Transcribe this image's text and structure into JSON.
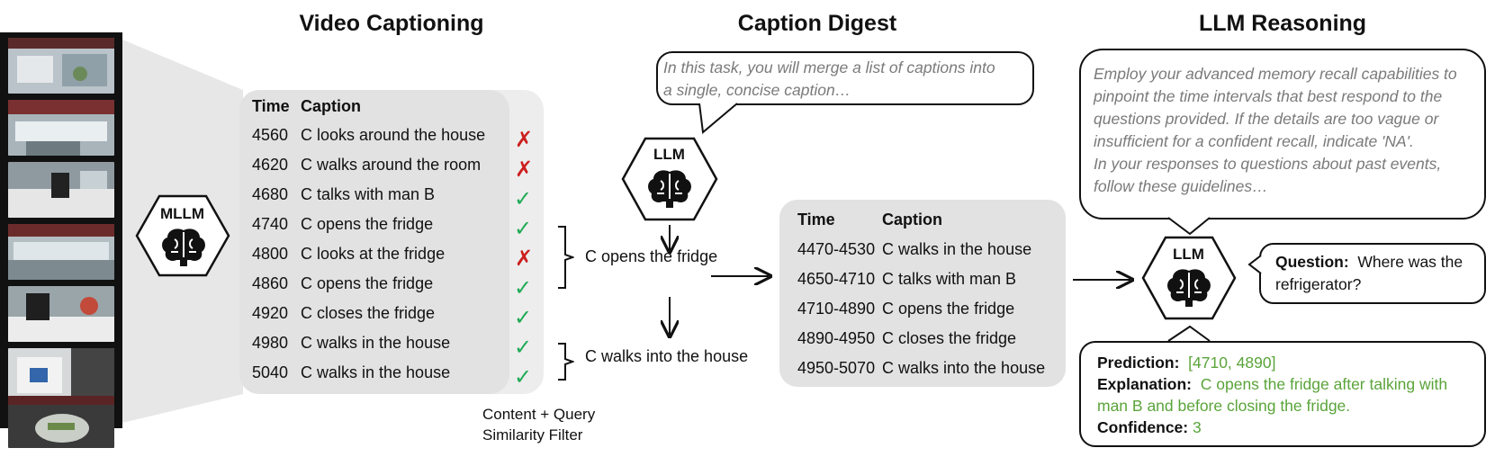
{
  "sections": {
    "video_captioning": "Video Captioning",
    "caption_digest": "Caption Digest",
    "llm_reasoning": "LLM Reasoning"
  },
  "mllm_label": "MLLM",
  "llm_label": "LLM",
  "caption_table": {
    "header_time": "Time",
    "header_caption": "Caption",
    "rows": [
      {
        "time": "4560",
        "caption": "C looks around the house",
        "kept": false
      },
      {
        "time": "4620",
        "caption": "C walks around the room",
        "kept": false
      },
      {
        "time": "4680",
        "caption": "C talks with man B",
        "kept": true
      },
      {
        "time": "4740",
        "caption": "C opens the fridge",
        "kept": true
      },
      {
        "time": "4800",
        "caption": "C looks at the fridge",
        "kept": false
      },
      {
        "time": "4860",
        "caption": "C opens the fridge",
        "kept": true
      },
      {
        "time": "4920",
        "caption": "C closes the fridge",
        "kept": true
      },
      {
        "time": "4980",
        "caption": "C walks in the house",
        "kept": true
      },
      {
        "time": "5040",
        "caption": "C walks in the house",
        "kept": true
      }
    ]
  },
  "filter_label": [
    "Content + Query",
    "Similarity Filter"
  ],
  "merged": {
    "first": "C opens the fridge",
    "second": "C walks into the house"
  },
  "digest_prompt": [
    "In this task, you will merge a list of captions into",
    "a single, concise caption…"
  ],
  "digest_table": {
    "header_time": "Time",
    "header_caption": "Caption",
    "rows": [
      {
        "time": "4470-4530",
        "caption": "C walks in the house"
      },
      {
        "time": "4650-4710",
        "caption": "C talks with man B"
      },
      {
        "time": "4710-4890",
        "caption": "C opens the fridge"
      },
      {
        "time": "4890-4950",
        "caption": "C closes the fridge"
      },
      {
        "time": "4950-5070",
        "caption": "C walks into the house"
      }
    ]
  },
  "reasoning_prompt": [
    "Employ your advanced memory recall capabilities to",
    "pinpoint the time intervals that best respond to the",
    "questions provided. If the details are too vague or",
    "insufficient for a confident recall, indicate 'NA'.",
    "In your responses to questions about past events,",
    "follow these guidelines…"
  ],
  "question": {
    "label": "Question:",
    "text_line1": "Where was the",
    "text_line2": "refrigerator?"
  },
  "prediction": {
    "label": "Prediction:",
    "value": "[4710, 4890]",
    "explanation_label": "Explanation:",
    "explanation_line1": "C opens the fridge after talking with",
    "explanation_line2": "man B and before closing the fridge.",
    "confidence_label": "Confidence:",
    "confidence_value": "3"
  },
  "colors": {
    "check": "#1faa55",
    "cross": "#cc1f1f",
    "answer_green": "#5aa43a",
    "prompt_gray": "#7a7a7a",
    "table_gray": "#e2e2e2"
  }
}
